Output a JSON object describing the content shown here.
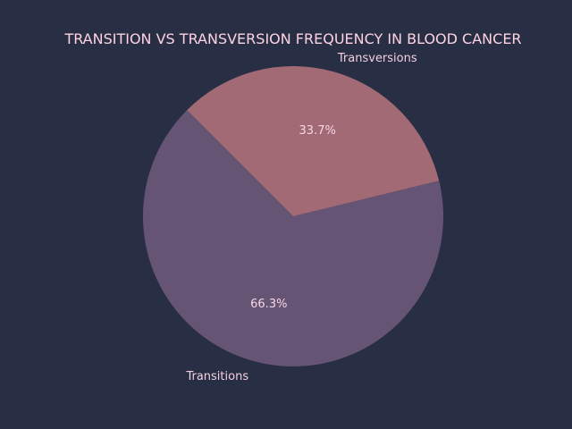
{
  "chart_data": {
    "type": "pie",
    "title": "TRANSITION VS TRANSVERSION FREQUENCY IN BLOOD CANCER",
    "labels": [
      "Transitions",
      "Transversions"
    ],
    "values": [
      66.3,
      33.7
    ],
    "percent_labels": [
      "66.3%",
      "33.7%"
    ],
    "colors": [
      "#655474",
      "#a16a75"
    ],
    "background": "#282e43",
    "legend": "none"
  }
}
